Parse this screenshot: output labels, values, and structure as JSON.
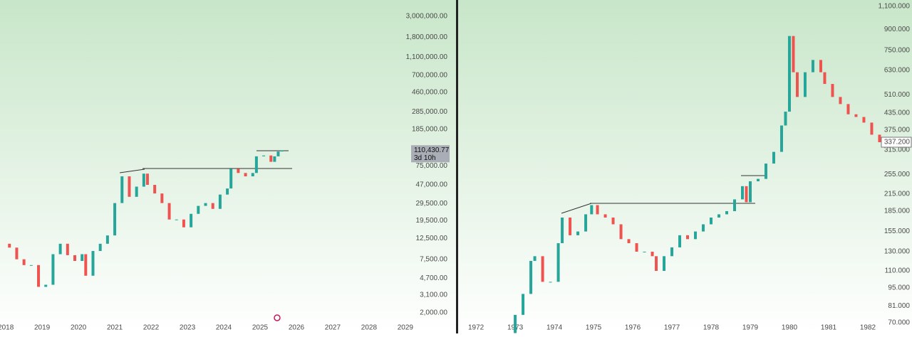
{
  "chart_data": [
    {
      "type": "candlestick",
      "log_scale": true,
      "grid": false,
      "up_color": "#26a69a",
      "down_color": "#ef5350",
      "x": [
        2017.9,
        2018.1,
        2018.3,
        2018.5,
        2018.7,
        2018.9,
        2019.1,
        2019.3,
        2019.5,
        2019.7,
        2019.9,
        2020.1,
        2020.2,
        2020.4,
        2020.6,
        2020.8,
        2021.0,
        2021.2,
        2021.4,
        2021.6,
        2021.8,
        2021.9,
        2022.1,
        2022.3,
        2022.5,
        2022.7,
        2022.9,
        2023.1,
        2023.3,
        2023.5,
        2023.7,
        2023.9,
        2024.1,
        2024.2,
        2024.4,
        2024.6,
        2024.8,
        2024.9,
        2025.1,
        2025.3,
        2025.4,
        2025.5,
        2025.6
      ],
      "values": [
        11000,
        10000,
        7500,
        6500,
        6500,
        3800,
        4000,
        8500,
        11000,
        8300,
        7200,
        8500,
        5000,
        9200,
        11000,
        13500,
        30000,
        58000,
        35000,
        45000,
        62000,
        47000,
        38000,
        30000,
        20000,
        20000,
        16500,
        23000,
        28000,
        30000,
        26000,
        37000,
        43000,
        70000,
        63000,
        58000,
        63000,
        95000,
        97000,
        83000,
        95000,
        107000,
        110430.77
      ],
      "xlim": [
        2017.84,
        2029.12
      ],
      "xticks": [
        2018,
        2019,
        2020,
        2021,
        2022,
        2023,
        2024,
        2025,
        2026,
        2027,
        2028,
        2029
      ],
      "ylim": [
        1680,
        4490000
      ],
      "yticks": [
        {
          "value": 2000,
          "label": "2,000.00"
        },
        {
          "value": 3100,
          "label": "3,100.00"
        },
        {
          "value": 4700,
          "label": "4,700.00"
        },
        {
          "value": 7500,
          "label": "7,500.00"
        },
        {
          "value": 12500,
          "label": "12,500.00"
        },
        {
          "value": 19500,
          "label": "19,500.00"
        },
        {
          "value": 29500,
          "label": "29,500.00"
        },
        {
          "value": 47000,
          "label": "47,000.00"
        },
        {
          "value": 75000,
          "label": "75,000.00"
        },
        {
          "value": 185000,
          "label": "185,000.00"
        },
        {
          "value": 285000,
          "label": "285,000.00"
        },
        {
          "value": 460000,
          "label": "460,000.00"
        },
        {
          "value": 700000,
          "label": "700,000.00"
        },
        {
          "value": 1100000,
          "label": "1,100,000.00"
        },
        {
          "value": 1800000,
          "label": "1,800,000.00"
        },
        {
          "value": 3000000,
          "label": "3,000,000.00"
        }
      ],
      "last_price": {
        "value": 110430.77,
        "label": "110,430.77"
      },
      "countdown": "3d 10h"
    },
    {
      "type": "candlestick",
      "log_scale": true,
      "grid": false,
      "up_color": "#26a69a",
      "down_color": "#ef5350",
      "x": [
        1972.9,
        1973.0,
        1973.2,
        1973.4,
        1973.5,
        1973.7,
        1973.9,
        1974.1,
        1974.2,
        1974.4,
        1974.6,
        1974.8,
        1974.95,
        1975.1,
        1975.3,
        1975.5,
        1975.7,
        1975.9,
        1976.1,
        1976.3,
        1976.5,
        1976.6,
        1976.8,
        1977.0,
        1977.2,
        1977.4,
        1977.6,
        1977.8,
        1978.0,
        1978.2,
        1978.4,
        1978.6,
        1978.8,
        1978.9,
        1979.0,
        1979.2,
        1979.4,
        1979.6,
        1979.8,
        1979.9,
        1980.0,
        1980.1,
        1980.2,
        1980.4,
        1980.6,
        1980.8,
        1980.9,
        1981.1,
        1981.3,
        1981.5,
        1981.7,
        1981.9,
        1982.1,
        1982.3
      ],
      "values": [
        64,
        75,
        90,
        120,
        125,
        100,
        100,
        140,
        175,
        150,
        155,
        180,
        195,
        180,
        175,
        165,
        145,
        140,
        130,
        130,
        125,
        110,
        125,
        135,
        150,
        145,
        155,
        165,
        175,
        180,
        185,
        205,
        230,
        200,
        240,
        245,
        280,
        310,
        390,
        440,
        850,
        620,
        500,
        620,
        690,
        620,
        560,
        500,
        470,
        430,
        420,
        400,
        360,
        337.2
      ],
      "xlim": [
        1971.58,
        1982.31
      ],
      "xticks": [
        1972,
        1973,
        1974,
        1975,
        1976,
        1977,
        1978,
        1979,
        1980,
        1981,
        1982
      ],
      "ylim": [
        63.8,
        1163
      ],
      "yticks": [
        {
          "value": 70,
          "label": "70.000"
        },
        {
          "value": 81,
          "label": "81.000"
        },
        {
          "value": 95,
          "label": "95.000"
        },
        {
          "value": 110,
          "label": "110.000"
        },
        {
          "value": 130,
          "label": "130.000"
        },
        {
          "value": 155,
          "label": "155.000"
        },
        {
          "value": 185,
          "label": "185.000"
        },
        {
          "value": 215,
          "label": "215.000"
        },
        {
          "value": 255,
          "label": "255.000"
        },
        {
          "value": 315,
          "label": "315.000"
        },
        {
          "value": 375,
          "label": "375.000"
        },
        {
          "value": 435,
          "label": "435.000"
        },
        {
          "value": 510,
          "label": "510.000"
        },
        {
          "value": 630,
          "label": "630.000"
        },
        {
          "value": 750,
          "label": "750.000"
        },
        {
          "value": 900,
          "label": "900.000"
        },
        {
          "value": 1100,
          "label": "1,100.000"
        }
      ],
      "last_price": {
        "value": 337.2,
        "label": "337.200"
      }
    }
  ]
}
